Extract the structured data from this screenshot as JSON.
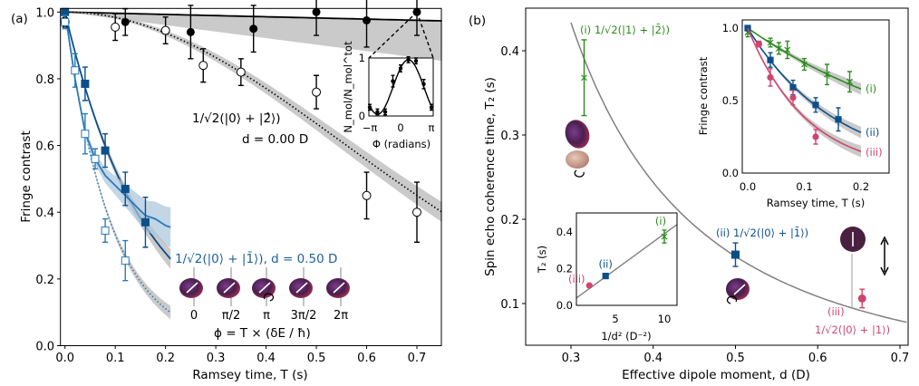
{
  "colors": {
    "black": "#000000",
    "dark_blue": "#0b4f8a",
    "light_blue": "#2a7ab8",
    "green": "#2a8c1a",
    "pink": "#cf456e",
    "band_gray": "#b4b4b4",
    "band_blue": "#a9c4dc",
    "curve_gray": "#808080"
  },
  "chart_data": [
    {
      "panel": "(a)",
      "type": "scatter",
      "xlabel": "Ramsey time, T (s)",
      "ylabel": "Fringe contrast",
      "xlim": [
        -0.01,
        0.75
      ],
      "ylim": [
        0.0,
        1.02
      ],
      "xticks": [
        "0.0",
        "0.1",
        "0.2",
        "0.3",
        "0.4",
        "0.5",
        "0.6",
        "0.7"
      ],
      "yticks": [
        "0.0",
        "0.2",
        "0.4",
        "0.6",
        "0.8",
        "1.0"
      ],
      "annotations": {
        "state_d0": "1/√2(|0⟩ + |2̂⟩)",
        "d0": "d = 0.00 D",
        "state_d05": "1/√2(|0⟩ + |1̄⟩), d = 0.50 D",
        "phase_labels": [
          "0",
          "π/2",
          "π",
          "3π/2",
          "2π"
        ],
        "phase_formula": "ϕ = T × (δE / ħ)"
      },
      "series": [
        {
          "marker": "filled-circle",
          "color": "black",
          "x": [
            0,
            0.12,
            0.25,
            0.375,
            0.5,
            0.6,
            0.7
          ],
          "y": [
            0.975,
            0.97,
            0.94,
            0.95,
            1.0,
            0.975,
            1.0
          ],
          "err": [
            0.02,
            0.04,
            0.08,
            0.07,
            0.07,
            0.08,
            0.07
          ]
        },
        {
          "marker": "open-circle",
          "color": "black",
          "x": [
            0,
            0.1,
            0.2,
            0.275,
            0.35,
            0.5,
            0.6,
            0.7
          ],
          "y": [
            0.97,
            0.955,
            0.945,
            0.84,
            0.82,
            0.76,
            0.45,
            0.4
          ],
          "err": [
            0.01,
            0.04,
            0.04,
            0.05,
            0.04,
            0.05,
            0.07,
            0.09
          ]
        },
        {
          "marker": "filled-square",
          "color": "dark_blue",
          "x": [
            0,
            0.04,
            0.08,
            0.12,
            0.16
          ],
          "y": [
            1.0,
            0.785,
            0.585,
            0.47,
            0.37
          ],
          "err": [
            0.01,
            0.05,
            0.05,
            0.05,
            0.075
          ]
        },
        {
          "marker": "open-square",
          "color": "light_blue",
          "x": [
            0,
            0.02,
            0.04,
            0.06,
            0.08,
            0.12
          ],
          "y": [
            0.97,
            0.825,
            0.635,
            0.56,
            0.345,
            0.255
          ],
          "err": [
            0.02,
            0.05,
            0.06,
            0.03,
            0.035,
            0.06
          ]
        }
      ],
      "fits": [
        {
          "style": "solid",
          "color": "black",
          "model": "exp",
          "tau": 28,
          "band": [
            0,
            0.12
          ],
          "xmax": 0.75
        },
        {
          "style": "dotted",
          "color": "black",
          "model": "gauss",
          "tau": 0.784,
          "band": [
            0.03,
            0.03
          ],
          "xmax": 0.75
        },
        {
          "style": "solid",
          "color": "dark_blue",
          "model": "exp",
          "tau": 0.156,
          "band": [
            0.03,
            0.03
          ],
          "xmax": 0.21
        },
        {
          "style": "dotted",
          "color": "light_blue",
          "model": "exp",
          "tau": 0.091,
          "band": [
            0.02,
            0.02
          ],
          "xmax": 0.21
        },
        {
          "style": "solid",
          "color": "light_blue",
          "model": "points",
          "x": [
            0,
            0.02,
            0.04,
            0.06,
            0.08,
            0.1,
            0.12,
            0.14,
            0.16,
            0.18,
            0.2,
            0.21
          ],
          "y": [
            1.0,
            0.8,
            0.64,
            0.56,
            0.51,
            0.48,
            0.45,
            0.42,
            0.39,
            0.38,
            0.36,
            0.355
          ],
          "band": [
            0.06,
            0.06
          ]
        }
      ],
      "inset": {
        "xlabel": "Φ (radians)",
        "ylabel": "N_mol/N_mol^tot",
        "xticks": [
          "−π",
          "0",
          "π"
        ],
        "yticks": [
          "0",
          "1"
        ],
        "x": [
          -3.14,
          -2.36,
          -1.57,
          -0.79,
          0,
          0.79,
          1.57,
          2.36,
          3.14
        ],
        "y": [
          0.15,
          0.07,
          0.07,
          0.6,
          0.82,
          0.97,
          0.95,
          0.55,
          0.15
        ],
        "err": [
          0.05,
          0.05,
          0.05,
          0.1,
          0.06,
          0.05,
          0.05,
          0.08,
          0.05
        ]
      }
    },
    {
      "panel": "(b)",
      "type": "scatter",
      "xlabel": "Effective dipole moment, d (D)",
      "ylabel": "Spin echo coherence time, T₂ (s)",
      "xlim": [
        0.245,
        0.71
      ],
      "ylim": [
        0.05,
        0.45
      ],
      "xticks": [
        "0.3",
        "0.4",
        "0.5",
        "0.6",
        "0.7"
      ],
      "yticks": [
        "0.1",
        "0.2",
        "0.3",
        "0.4"
      ],
      "curve": {
        "model": "k/d^2",
        "k": 0.039
      },
      "points": [
        {
          "id": "(i)",
          "label": "(i) 1/√2(|1⟩ + |2̄⟩)",
          "marker": "x",
          "color": "green",
          "d": 0.316,
          "T2": 0.368,
          "err": 0.045
        },
        {
          "id": "(ii)",
          "label": "(ii) 1/√2(|0⟩ + |1̄⟩)",
          "marker": "square",
          "color": "dark_blue",
          "d": 0.5,
          "T2": 0.158,
          "err": 0.014
        },
        {
          "id": "(iii)",
          "label": "(iii)",
          "label2": "1/√2(|0⟩ + |1⟩)",
          "marker": "circle",
          "color": "pink",
          "d": 0.654,
          "T2": 0.106,
          "err": 0.011
        }
      ],
      "inset_top": {
        "xlabel": "Ramsey time, T (s)",
        "ylabel": "Fringe contrast",
        "xticks": [
          "0.0",
          "0.1",
          "0.2"
        ],
        "yticks": [
          "0.0",
          "0.5",
          "1.0"
        ],
        "series": [
          {
            "name": "(i)",
            "marker": "x",
            "color": "green",
            "x": [
              0,
              0.04,
              0.055,
              0.07,
              0.1,
              0.14,
              0.18
            ],
            "y": [
              0.97,
              0.9,
              0.86,
              0.85,
              0.75,
              0.68,
              0.63
            ],
            "err": [
              0.03,
              0.03,
              0.04,
              0.06,
              0.04,
              0.07,
              0.07
            ],
            "tau": 0.367
          },
          {
            "name": "(ii)",
            "marker": "square",
            "color": "dark_blue",
            "x": [
              0,
              0.04,
              0.08,
              0.12,
              0.16
            ],
            "y": [
              1.0,
              0.78,
              0.59,
              0.47,
              0.37
            ],
            "err": [
              0.01,
              0.05,
              0.05,
              0.05,
              0.08
            ],
            "tau": 0.157
          },
          {
            "name": "(iii)",
            "marker": "circle",
            "color": "pink",
            "x": [
              0.02,
              0.04,
              0.08,
              0.12
            ],
            "y": [
              0.89,
              0.66,
              0.52,
              0.25
            ],
            "err": [
              0.02,
              0.06,
              0.05,
              0.05
            ],
            "tau": 0.105
          }
        ]
      },
      "inset_bottom": {
        "xlabel": "1/d² (D⁻²)",
        "ylabel": "T₂ (s)",
        "xticks": [
          "5",
          "10"
        ],
        "yticks": [
          "0.0",
          "0.2",
          "0.4"
        ],
        "points": [
          {
            "name": "(iii)",
            "marker": "circle",
            "color": "pink",
            "x": 2.34,
            "y": 0.108,
            "err": 0
          },
          {
            "name": "(ii)",
            "marker": "square",
            "color": "dark_blue",
            "x": 4.0,
            "y": 0.16,
            "err": 0
          },
          {
            "name": "(i)",
            "marker": "x",
            "color": "green",
            "x": 10.0,
            "y": 0.375,
            "err": 0.035
          }
        ],
        "slope": 0.039
      }
    }
  ]
}
